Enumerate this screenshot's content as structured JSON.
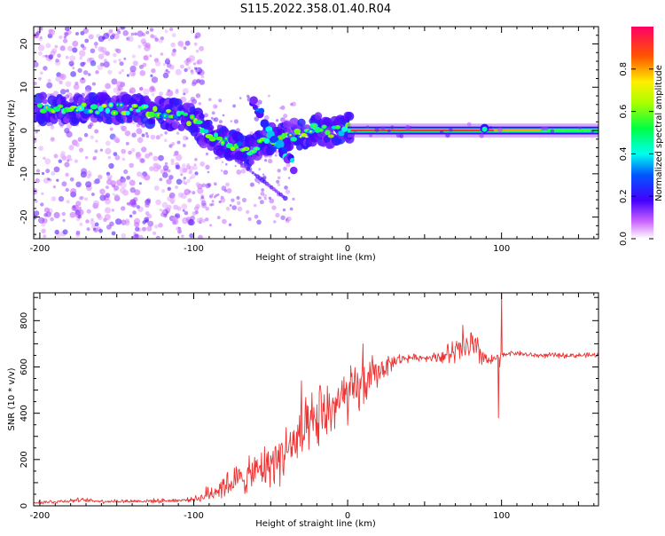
{
  "title": "S115.2022.358.01.40.R04",
  "colors": {
    "line": "#ee3333",
    "axis": "#000000"
  },
  "chart_data": [
    {
      "type": "heatmap",
      "xlabel": "Height of straight line (km)",
      "ylabel": "Frequency (Hz)",
      "xlim": [
        -204,
        163
      ],
      "ylim": [
        -25,
        24
      ],
      "x_ticks": [
        -200,
        -100,
        0,
        100
      ],
      "x_tick_labels": [
        "-200",
        "-100",
        "0",
        "100"
      ],
      "y_ticks": [
        -20,
        -10,
        0,
        10,
        20
      ],
      "y_tick_labels": [
        "-20",
        "-10",
        "0",
        "10",
        "20"
      ],
      "ridge": [
        [
          -195,
          5
        ],
        [
          -180,
          5
        ],
        [
          -165,
          5
        ],
        [
          -150,
          5
        ],
        [
          -135,
          5
        ],
        [
          -120,
          4
        ],
        [
          -108,
          3.5
        ],
        [
          -100,
          2
        ],
        [
          -92,
          -0.5
        ],
        [
          -84,
          -2
        ],
        [
          -76,
          -3
        ],
        [
          -70,
          -4
        ],
        [
          -66,
          -5
        ],
        [
          -58,
          -3.5
        ],
        [
          -50,
          -2
        ],
        [
          -40,
          -1.5
        ],
        [
          -30,
          -1
        ],
        [
          -20,
          0.5
        ],
        [
          -12,
          -0.5
        ],
        [
          -5,
          0
        ],
        [
          0,
          0.5
        ],
        [
          20,
          0
        ],
        [
          60,
          0
        ],
        [
          90,
          0
        ],
        [
          120,
          0
        ],
        [
          163,
          0
        ]
      ],
      "branch": [
        [
          -62,
          7
        ],
        [
          -55,
          3
        ],
        [
          -48,
          -2
        ],
        [
          -40,
          -6
        ],
        [
          -35,
          -8
        ]
      ],
      "colorbar": {
        "label": "Normalized spectral amplitude",
        "ticks": [
          0.0,
          0.2,
          0.4,
          0.6,
          0.8
        ],
        "tick_labels": [
          "0.0",
          "0.2",
          "0.4",
          "0.6",
          "0.8"
        ],
        "range": [
          0,
          1
        ]
      },
      "grid": false,
      "legend": "none"
    },
    {
      "type": "line",
      "xlabel": "Height of straight line (km)",
      "ylabel": "SNR (10 * v/v)",
      "xlim": [
        -204,
        163
      ],
      "ylim": [
        0,
        920
      ],
      "x_ticks": [
        -200,
        -100,
        0,
        100
      ],
      "x_tick_labels": [
        "-200",
        "-100",
        "0",
        "100"
      ],
      "y_ticks": [
        0,
        200,
        400,
        600,
        800
      ],
      "y_tick_labels": [
        "0",
        "200",
        "400",
        "600",
        "800"
      ],
      "series": [
        {
          "values": {
            "x": [
              -204,
              -190,
              -175,
              -160,
              -140,
              -120,
              -105,
              -95,
              -88,
              -80,
              -72,
              -64,
              -56,
              -48,
              -40,
              -32,
              -24,
              -16,
              -8,
              0,
              8,
              16,
              24,
              32,
              40,
              50,
              60,
              70,
              80,
              88,
              92,
              97,
              100,
              104,
              110,
              120,
              140,
              163
            ],
            "y": [
              15,
              18,
              25,
              20,
              20,
              22,
              25,
              35,
              60,
              90,
              110,
              130,
              160,
              190,
              240,
              280,
              330,
              390,
              440,
              470,
              510,
              560,
              600,
              630,
              640,
              640,
              645,
              660,
              690,
              650,
              620,
              640,
              650,
              660,
              660,
              650,
              650,
              650
            ]
          },
          "noise": {
            "x": [
              -204,
              -100,
              -90,
              -80,
              -60,
              -40,
              -20,
              0,
              10,
              20,
              30,
              45,
              55,
              70,
              80,
              88,
              95,
              105,
              163
            ],
            "y": [
              8,
              8,
              35,
              55,
              70,
              110,
              130,
              110,
              100,
              60,
              25,
              12,
              15,
              55,
              80,
              40,
              18,
              10,
              10
            ]
          },
          "spikes": [
            [
              -30,
              540
            ],
            [
              -18,
              520
            ],
            [
              10,
              700
            ],
            [
              75,
              780
            ],
            [
              100,
              920
            ],
            [
              98,
              380
            ],
            [
              99,
              600
            ]
          ]
        }
      ],
      "grid": false,
      "legend": "none"
    }
  ]
}
